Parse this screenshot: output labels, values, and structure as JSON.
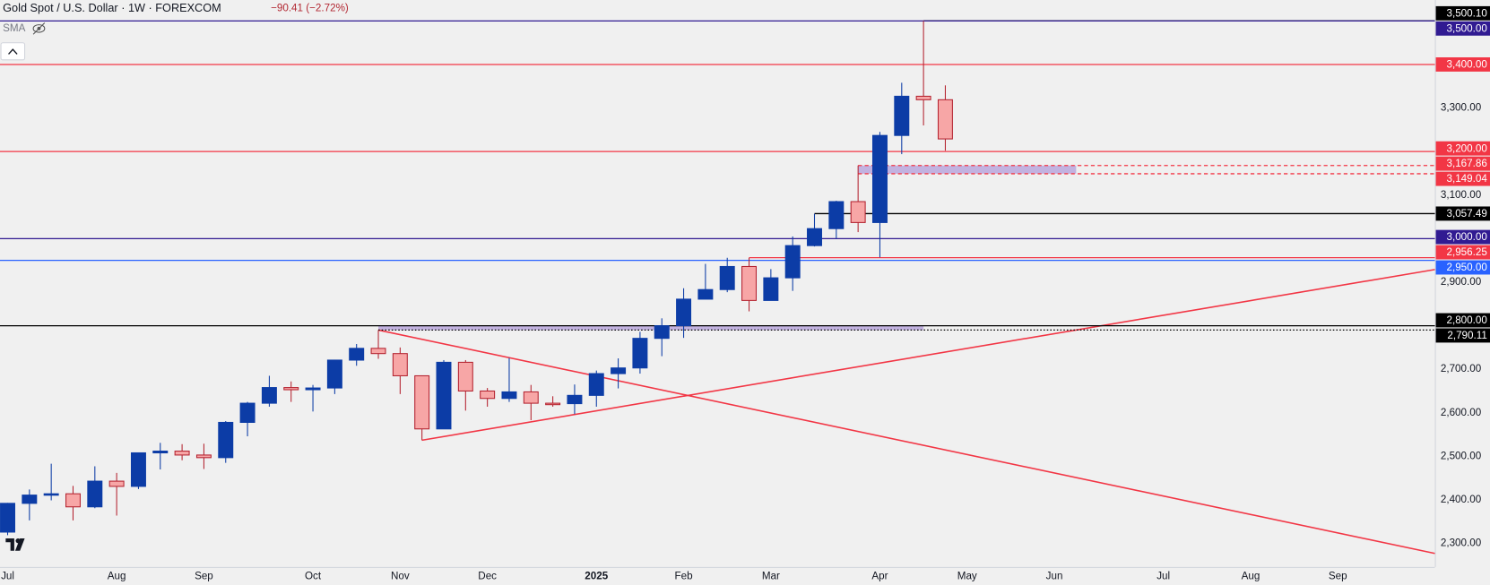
{
  "chart_data": {
    "type": "candlestick",
    "title": "Gold Spot / U.S. Dollar · 1W · FOREXCOM",
    "change": "−90.41 (−2.72%)",
    "indicator": "SMA",
    "up_color": "#0c3ca6",
    "down_color": "#f7a6a6",
    "down_border": "#b42330",
    "open": [
      2326,
      2392,
      2411,
      2414,
      2384,
      2443,
      2431,
      2508,
      2512,
      2503,
      2497,
      2578,
      2622,
      2658,
      2653,
      2657,
      2721,
      2748,
      2736,
      2685,
      2563,
      2716,
      2650,
      2633,
      2648,
      2622,
      2621,
      2640,
      2690,
      2703,
      2771,
      2800,
      2861,
      2883,
      2936,
      2858,
      2910,
      2984,
      3023,
      3085,
      3037,
      3237,
      3327,
      3319
    ],
    "high": [
      2393,
      2424,
      2483,
      2432,
      2477,
      2462,
      2509,
      2531,
      2528,
      2529,
      2581,
      2625,
      2685,
      2672,
      2664,
      2722,
      2758,
      2790,
      2750,
      2686,
      2721,
      2721,
      2657,
      2726,
      2664,
      2638,
      2665,
      2697,
      2725,
      2786,
      2817,
      2886,
      2942,
      2956,
      2956,
      2930,
      3005,
      3057,
      3087,
      3168,
      3245,
      3358,
      3500,
      3352
    ],
    "low": [
      2319,
      2353,
      2399,
      2353,
      2381,
      2364,
      2425,
      2470,
      2491,
      2471,
      2485,
      2546,
      2614,
      2625,
      2603,
      2643,
      2708,
      2724,
      2643,
      2537,
      2563,
      2605,
      2614,
      2625,
      2583,
      2614,
      2597,
      2614,
      2656,
      2690,
      2730,
      2772,
      2864,
      2877,
      2833,
      2858,
      2880,
      2982,
      3000,
      3015,
      2957,
      3194,
      3260,
      3202
    ],
    "close": [
      2392,
      2411,
      2414,
      2384,
      2443,
      2431,
      2508,
      2512,
      2503,
      2497,
      2578,
      2622,
      2658,
      2653,
      2657,
      2721,
      2748,
      2736,
      2685,
      2563,
      2716,
      2650,
      2633,
      2648,
      2622,
      2621,
      2640,
      2690,
      2703,
      2771,
      2800,
      2861,
      2883,
      2936,
      2858,
      2910,
      2984,
      3023,
      3085,
      3037,
      3237,
      3327,
      3319,
      3229
    ],
    "xlim": [
      -0.35,
      65.45
    ],
    "ylim": [
      2246,
      3548
    ],
    "grid": false,
    "xticks": [
      {
        "value": 0,
        "label": "Jul"
      },
      {
        "value": 5,
        "label": "Aug"
      },
      {
        "value": 9,
        "label": "Sep"
      },
      {
        "value": 14,
        "label": "Oct"
      },
      {
        "value": 18,
        "label": "Nov"
      },
      {
        "value": 22,
        "label": "Dec"
      },
      {
        "value": 27,
        "label": "2025"
      },
      {
        "value": 31,
        "label": "Feb"
      },
      {
        "value": 35,
        "label": "Mar"
      },
      {
        "value": 40,
        "label": "Apr"
      },
      {
        "value": 44,
        "label": "May"
      },
      {
        "value": 48,
        "label": "Jun"
      },
      {
        "value": 53,
        "label": "Jul"
      },
      {
        "value": 57,
        "label": "Aug"
      },
      {
        "value": 61,
        "label": "Sep"
      }
    ],
    "yticks": [
      {
        "value": 3300,
        "label": "3,300.00"
      },
      {
        "value": 3100,
        "label": "3,100.00"
      },
      {
        "value": 2900,
        "label": "2,900.00"
      },
      {
        "value": 2700,
        "label": "2,700.00"
      },
      {
        "value": 2600,
        "label": "2,600.00"
      },
      {
        "value": 2500,
        "label": "2,500.00"
      },
      {
        "value": 2400,
        "label": "2,400.00"
      },
      {
        "value": 2300,
        "label": "2,300.00"
      }
    ],
    "levels": [
      {
        "value": 3500.1,
        "label": "3,500.10",
        "color": "#000000",
        "style": "solid",
        "from": 42
      },
      {
        "value": 3500,
        "label": "3,500.00",
        "color": "#311b92",
        "style": "solid"
      },
      {
        "value": 3400,
        "label": "3,400.00",
        "color": "#f23645",
        "style": "solid"
      },
      {
        "value": 3200,
        "label": "3,200.00",
        "color": "#f23645",
        "style": "solid"
      },
      {
        "value": 3167.86,
        "label": "3,167.86",
        "color": "#f23645",
        "style": "dashed",
        "from": 39
      },
      {
        "value": 3149.04,
        "label": "3,149.04",
        "color": "#f23645",
        "style": "dashed",
        "from": 39
      },
      {
        "value": 3057.49,
        "label": "3,057.49",
        "color": "#000000",
        "style": "solid",
        "from": 37
      },
      {
        "value": 3000,
        "label": "3,000.00",
        "color": "#311b92",
        "style": "solid"
      },
      {
        "value": 2956.25,
        "label": "2,956.25",
        "color": "#f23645",
        "style": "solid",
        "from": 34
      },
      {
        "value": 2950,
        "label": "2,950.00",
        "color": "#2962ff",
        "style": "solid"
      },
      {
        "value": 2800,
        "label": "2,800.00",
        "color": "#000000",
        "style": "solid"
      },
      {
        "value": 2790.11,
        "label": "2,790.11",
        "color": "#000000",
        "style": "dotted",
        "from": 17
      }
    ],
    "zones": [
      {
        "from": 17,
        "to": 42,
        "low": 2790.11,
        "high": 2800,
        "color": "#b39ddb"
      },
      {
        "from": 39,
        "to": 49,
        "low": 3149.04,
        "high": 3167.86,
        "color": "#b39ddb"
      }
    ],
    "trendlines": [
      {
        "x": [
          17,
          65.45
        ],
        "y": [
          2790,
          2277
        ],
        "color": "#f23645"
      },
      {
        "x": [
          19,
          65.45
        ],
        "y": [
          2537,
          2929
        ],
        "color": "#f23645"
      }
    ]
  }
}
